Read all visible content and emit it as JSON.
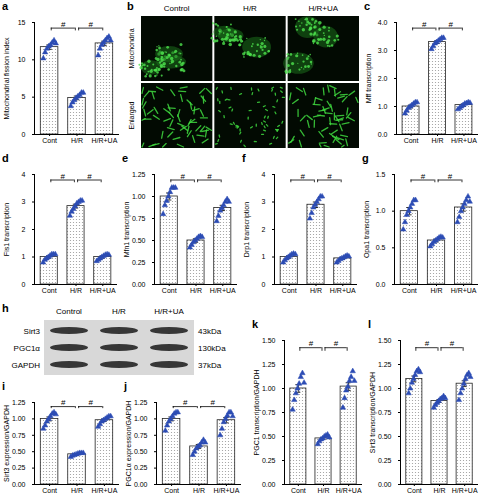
{
  "chart_data": [
    {
      "type": "bar",
      "title": "a",
      "y_label": "Mitochondrial fission index",
      "categories": [
        "Cont",
        "H/R",
        "H/R+UA"
      ],
      "values": [
        11.7,
        4.9,
        12.2
      ],
      "errors": [
        0.3,
        0.25,
        0.3
      ],
      "points": [
        [
          10.2,
          11.0,
          11.5,
          11.8,
          12.0,
          12.3,
          12.6,
          12.2
        ],
        [
          3.8,
          4.3,
          4.6,
          4.9,
          5.1,
          5.3,
          5.6,
          5.6
        ],
        [
          10.6,
          11.5,
          12.0,
          12.3,
          12.6,
          12.9,
          13.1,
          12.6
        ]
      ],
      "color": "#2c4cb4",
      "marker": "triangle",
      "ylim": [
        0,
        15
      ],
      "yticks": [
        0,
        5,
        10,
        15
      ],
      "annotations": [
        {
          "text": "#",
          "between": [
            "Cont",
            "H/R"
          ]
        },
        {
          "text": "#",
          "between": [
            "H/R",
            "H/R+UA"
          ]
        }
      ]
    },
    {
      "type": "bar",
      "title": "c",
      "y_label": "Mff transcription",
      "categories": [
        "Cont",
        "H/R",
        "H/R+UA"
      ],
      "values": [
        1.0,
        3.3,
        1.05
      ],
      "errors": [
        0.05,
        0.05,
        0.04
      ],
      "points": [
        [
          0.75,
          0.85,
          0.95,
          1.0,
          1.05,
          1.1,
          1.15,
          1.15
        ],
        [
          3.05,
          3.15,
          3.25,
          3.3,
          3.35,
          3.4,
          3.45,
          3.45
        ],
        [
          0.9,
          0.95,
          1.0,
          1.05,
          1.1,
          1.12,
          1.15,
          1.13
        ]
      ],
      "color": "#2c4cb4",
      "marker": "triangle",
      "ylim": [
        0,
        4
      ],
      "yticks": [
        {
          "value": 0,
          "label": "0.0"
        },
        {
          "value": 1,
          "label": "1.0"
        },
        {
          "value": 2,
          "label": "2.0"
        },
        {
          "value": 3,
          "label": "3.0"
        },
        {
          "value": 4,
          "label": "4.0"
        }
      ],
      "annotations": [
        {
          "text": "#",
          "between": [
            "Cont",
            "H/R"
          ]
        },
        {
          "text": "#",
          "between": [
            "H/R",
            "H/R+UA"
          ]
        }
      ]
    },
    {
      "type": "bar",
      "title": "d",
      "y_label": "Fis1 transcription",
      "categories": [
        "Cont",
        "H/R",
        "H/R+UA"
      ],
      "values": [
        1.0,
        2.85,
        1.0
      ],
      "errors": [
        0.04,
        0.07,
        0.04
      ],
      "points": [
        [
          0.8,
          0.9,
          0.95,
          1.0,
          1.05,
          1.1,
          1.1,
          1.1
        ],
        [
          2.5,
          2.65,
          2.75,
          2.85,
          2.95,
          3.0,
          3.05,
          3.05
        ],
        [
          0.85,
          0.9,
          0.95,
          1.0,
          1.04,
          1.08,
          1.1,
          1.08
        ]
      ],
      "color": "#2c4cb4",
      "marker": "triangle",
      "ylim": [
        0,
        4
      ],
      "yticks": [
        0,
        1,
        2,
        3,
        4
      ],
      "annotations": [
        {
          "text": "#",
          "between": [
            "Cont",
            "H/R"
          ]
        },
        {
          "text": "#",
          "between": [
            "H/R",
            "H/R+UA"
          ]
        }
      ]
    },
    {
      "type": "bar",
      "title": "e",
      "y_label": "Mfn1 transcription",
      "categories": [
        "Cont",
        "H/R",
        "H/R+UA"
      ],
      "values": [
        1.0,
        0.5,
        0.87
      ],
      "errors": [
        0.04,
        0.02,
        0.03
      ],
      "points": [
        [
          0.8,
          0.9,
          0.95,
          1.0,
          1.05,
          1.1,
          1.1,
          1.1
        ],
        [
          0.42,
          0.45,
          0.48,
          0.5,
          0.52,
          0.54,
          0.55,
          0.54
        ],
        [
          0.72,
          0.78,
          0.84,
          0.87,
          0.9,
          0.94,
          0.97,
          0.94
        ]
      ],
      "color": "#2c4cb4",
      "marker": "triangle",
      "ylim": [
        0,
        1.25
      ],
      "yticks": [
        {
          "value": 0,
          "label": "0.00"
        },
        {
          "value": 0.25,
          "label": "0.25"
        },
        {
          "value": 0.5,
          "label": "0.50"
        },
        {
          "value": 0.75,
          "label": "0.75"
        },
        {
          "value": 1,
          "label": "1.00"
        },
        {
          "value": 1.25,
          "label": "1.25"
        }
      ],
      "annotations": [
        {
          "text": "#",
          "between": [
            "Cont",
            "H/R"
          ]
        },
        {
          "text": "#",
          "between": [
            "H/R",
            "H/R+UA"
          ]
        }
      ]
    },
    {
      "type": "bar",
      "title": "f",
      "y_label": "Drp1 transcription",
      "categories": [
        "Cont",
        "H/R",
        "H/R+UA"
      ],
      "values": [
        1.0,
        2.9,
        0.95
      ],
      "errors": [
        0.04,
        0.1,
        0.04
      ],
      "points": [
        [
          0.8,
          0.88,
          0.95,
          1.0,
          1.05,
          1.1,
          1.12,
          1.1
        ],
        [
          2.4,
          2.6,
          2.8,
          2.9,
          3.0,
          3.1,
          3.2,
          3.2
        ],
        [
          0.8,
          0.86,
          0.92,
          0.95,
          0.98,
          1.02,
          1.05,
          1.02
        ]
      ],
      "color": "#2c4cb4",
      "marker": "triangle",
      "ylim": [
        0,
        4
      ],
      "yticks": [
        0,
        1,
        2,
        3,
        4
      ],
      "annotations": [
        {
          "text": "#",
          "between": [
            "Cont",
            "H/R"
          ]
        },
        {
          "text": "#",
          "between": [
            "H/R",
            "H/R+UA"
          ]
        }
      ]
    },
    {
      "type": "bar",
      "title": "g",
      "y_label": "Opa1 transcription",
      "categories": [
        "Cont",
        "H/R",
        "H/R+UA"
      ],
      "values": [
        1.0,
        0.6,
        1.05
      ],
      "errors": [
        0.05,
        0.02,
        0.05
      ],
      "points": [
        [
          0.75,
          0.85,
          0.95,
          1.0,
          1.05,
          1.1,
          1.15,
          1.15
        ],
        [
          0.52,
          0.55,
          0.58,
          0.6,
          0.62,
          0.64,
          0.65,
          0.64
        ],
        [
          0.85,
          0.92,
          1.0,
          1.05,
          1.1,
          1.15,
          1.2,
          1.13
        ]
      ],
      "color": "#2c4cb4",
      "marker": "triangle",
      "ylim": [
        0,
        1.5
      ],
      "yticks": [
        {
          "value": 0,
          "label": "0.0"
        },
        {
          "value": 0.5,
          "label": "0.5"
        },
        {
          "value": 1,
          "label": "1.0"
        },
        {
          "value": 1.5,
          "label": "1.5"
        }
      ],
      "annotations": [
        {
          "text": "#",
          "between": [
            "Cont",
            "H/R"
          ]
        },
        {
          "text": "#",
          "between": [
            "H/R",
            "H/R+UA"
          ]
        }
      ]
    },
    {
      "type": "bar",
      "title": "i",
      "y_label": "Sirt3 expression/GAPDH",
      "categories": [
        "Cont",
        "H/R",
        "H/R+UA"
      ],
      "values": [
        1.0,
        0.46,
        0.98
      ],
      "errors": [
        0.03,
        0.01,
        0.02
      ],
      "points": [
        [
          0.85,
          0.9,
          0.96,
          1.0,
          1.04,
          1.08,
          1.1,
          1.07
        ],
        [
          0.42,
          0.44,
          0.45,
          0.46,
          0.47,
          0.48,
          0.48,
          0.48
        ],
        [
          0.88,
          0.92,
          0.96,
          0.98,
          1.0,
          1.02,
          1.04,
          1.04
        ]
      ],
      "color": "#2c4cb4",
      "marker": "triangle",
      "ylim": [
        0,
        1.25
      ],
      "yticks": [
        {
          "value": 0,
          "label": "0.00"
        },
        {
          "value": 0.25,
          "label": "0.25"
        },
        {
          "value": 0.5,
          "label": "0.50"
        },
        {
          "value": 0.75,
          "label": "0.75"
        },
        {
          "value": 1,
          "label": "1.00"
        },
        {
          "value": 1.25,
          "label": "1.25"
        }
      ],
      "annotations": [
        {
          "text": "#",
          "between": [
            "Cont",
            "H/R"
          ]
        },
        {
          "text": "#",
          "between": [
            "H/R",
            "H/R+UA"
          ]
        }
      ]
    },
    {
      "type": "bar",
      "title": "j",
      "y_label": "PGC1α expression/GAPDH",
      "categories": [
        "Cont",
        "H/R",
        "H/R+UA"
      ],
      "values": [
        1.0,
        0.58,
        0.98
      ],
      "errors": [
        0.03,
        0.03,
        0.04
      ],
      "points": [
        [
          0.82,
          0.9,
          0.96,
          1.0,
          1.04,
          1.08,
          1.1,
          1.1
        ],
        [
          0.45,
          0.5,
          0.55,
          0.58,
          0.6,
          0.64,
          0.68,
          0.64
        ],
        [
          0.75,
          0.85,
          0.95,
          1.0,
          1.05,
          1.1,
          1.1,
          1.04
        ]
      ],
      "color": "#2c4cb4",
      "marker": "triangle",
      "ylim": [
        0,
        1.25
      ],
      "yticks": [
        {
          "value": 0,
          "label": "0.00"
        },
        {
          "value": 0.25,
          "label": "0.25"
        },
        {
          "value": 0.5,
          "label": "0.50"
        },
        {
          "value": 0.75,
          "label": "0.75"
        },
        {
          "value": 1,
          "label": "1.00"
        },
        {
          "value": 1.25,
          "label": "1.25"
        }
      ],
      "annotations": [
        {
          "text": "#",
          "between": [
            "Cont",
            "H/R"
          ]
        },
        {
          "text": "#",
          "between": [
            "H/R",
            "H/R+UA"
          ]
        }
      ]
    },
    {
      "type": "bar",
      "title": "k",
      "y_label": "PGC1 transcription/GAPDH",
      "categories": [
        "Cont",
        "H/R",
        "H/R+UA"
      ],
      "values": [
        1.0,
        0.48,
        1.02
      ],
      "errors": [
        0.04,
        0.01,
        0.04
      ],
      "points": [
        [
          0.78,
          0.88,
          0.95,
          1.0,
          1.05,
          1.12,
          1.16,
          1.06
        ],
        [
          0.42,
          0.45,
          0.47,
          0.48,
          0.5,
          0.51,
          0.52,
          0.49
        ],
        [
          0.8,
          0.9,
          0.98,
          1.02,
          1.08,
          1.12,
          1.18,
          1.08
        ]
      ],
      "color": "#2c4cb4",
      "marker": "triangle",
      "ylim": [
        0,
        1.5
      ],
      "yticks": [
        {
          "value": 0,
          "label": "0.00"
        },
        {
          "value": 0.25,
          "label": "0.25"
        },
        {
          "value": 0.5,
          "label": "0.50"
        },
        {
          "value": 0.75,
          "label": "0.75"
        },
        {
          "value": 1,
          "label": "1.00"
        },
        {
          "value": 1.25,
          "label": "1.25"
        },
        {
          "value": 1.5,
          "label": "1.50"
        }
      ],
      "annotations": [
        {
          "text": "#",
          "between": [
            "Cont",
            "H/R"
          ]
        },
        {
          "text": "#",
          "between": [
            "H/R",
            "H/R+UA"
          ]
        }
      ]
    },
    {
      "type": "bar",
      "title": "l",
      "y_label": "Sirt3 transcription/GAPDH",
      "categories": [
        "Cont",
        "H/R",
        "H/R+UA"
      ],
      "values": [
        1.1,
        0.87,
        1.05
      ],
      "errors": [
        0.03,
        0.015,
        0.03
      ],
      "points": [
        [
          0.95,
          1.0,
          1.06,
          1.1,
          1.14,
          1.18,
          1.2,
          1.17
        ],
        [
          0.8,
          0.83,
          0.85,
          0.87,
          0.89,
          0.9,
          0.92,
          0.9
        ],
        [
          0.88,
          0.95,
          1.0,
          1.05,
          1.1,
          1.14,
          1.16,
          1.12
        ]
      ],
      "color": "#2c4cb4",
      "marker": "triangle",
      "ylim": [
        0,
        1.5
      ],
      "yticks": [
        {
          "value": 0,
          "label": "0.00"
        },
        {
          "value": 0.25,
          "label": "0.25"
        },
        {
          "value": 0.5,
          "label": "0.50"
        },
        {
          "value": 0.75,
          "label": "0.75"
        },
        {
          "value": 1,
          "label": "1.00"
        },
        {
          "value": 1.25,
          "label": "1.25"
        },
        {
          "value": 1.5,
          "label": "1.50"
        }
      ],
      "annotations": [
        {
          "text": "#",
          "between": [
            "Cont",
            "H/R"
          ]
        },
        {
          "text": "#",
          "between": [
            "H/R",
            "H/R+UA"
          ]
        }
      ]
    }
  ],
  "panels": {
    "b": {
      "label": "b",
      "columns": [
        "Control",
        "H/R",
        "H/R+UA"
      ],
      "rows": [
        "Mitochondria",
        "Enlarged"
      ]
    },
    "h": {
      "label": "h",
      "columns": [
        "Control",
        "H/R",
        "H/R+UA"
      ],
      "bands": [
        {
          "name": "Sirt3",
          "size": "43kDa"
        },
        {
          "name": "PGC1α",
          "size": "130kDa"
        },
        {
          "name": "GAPDH",
          "size": "37kDa"
        }
      ]
    }
  }
}
